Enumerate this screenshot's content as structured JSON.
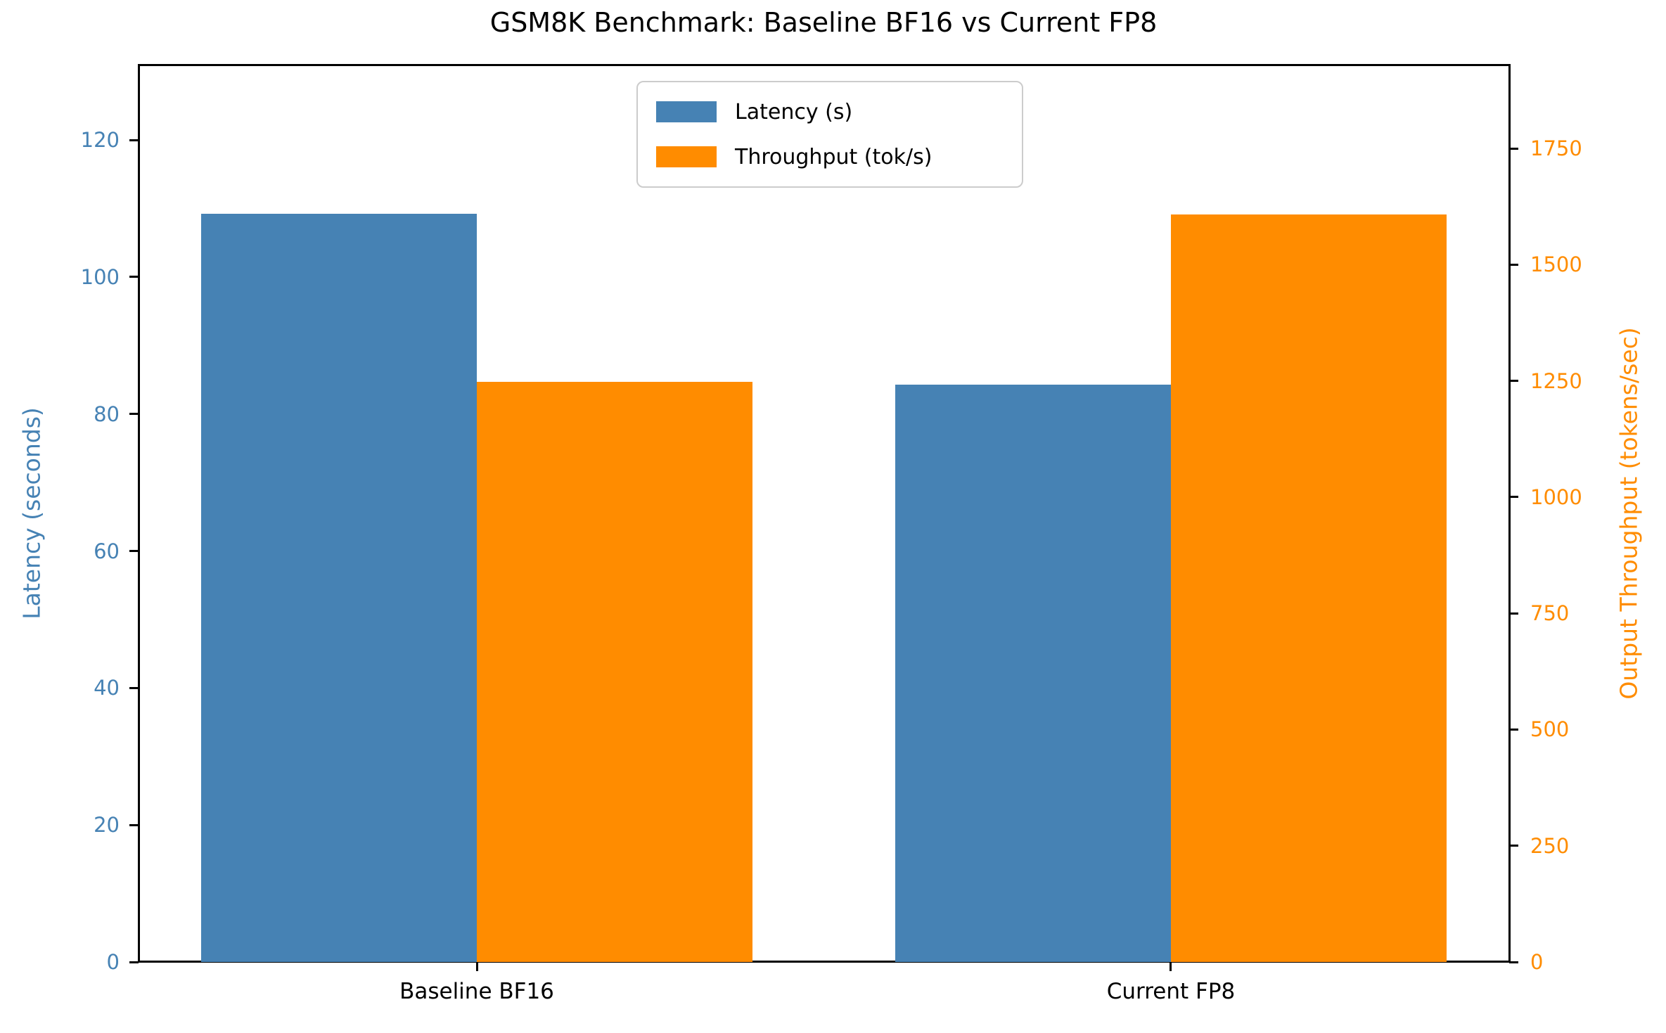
{
  "chart_data": {
    "type": "bar",
    "title": "GSM8K Benchmark: Baseline BF16 vs Current FP8",
    "categories": [
      "Baseline BF16",
      "Current FP8"
    ],
    "series": [
      {
        "name": "Latency (s)",
        "axis": "left",
        "color": "#4682B4",
        "values": [
          109.2,
          84.3
        ]
      },
      {
        "name": "Throughput (tok/s)",
        "axis": "right",
        "color": "#FF8C00",
        "values": [
          1248,
          1608
        ]
      }
    ],
    "left_axis": {
      "label": "Latency (seconds)",
      "ticks": [
        0,
        20,
        40,
        60,
        80,
        100,
        120
      ],
      "range": [
        0,
        131
      ],
      "color": "#4682B4"
    },
    "right_axis": {
      "label": "Output Throughput (tokens/sec)",
      "ticks": [
        0,
        250,
        500,
        750,
        1000,
        1250,
        1500,
        1750
      ],
      "range": [
        0,
        1930
      ],
      "color": "#FF8C00"
    },
    "legend": {
      "position": "upper center",
      "entries": [
        "Latency (s)",
        "Throughput (tok/s)"
      ]
    },
    "grid": false,
    "spine_color": "#000000",
    "background": "#ffffff"
  }
}
